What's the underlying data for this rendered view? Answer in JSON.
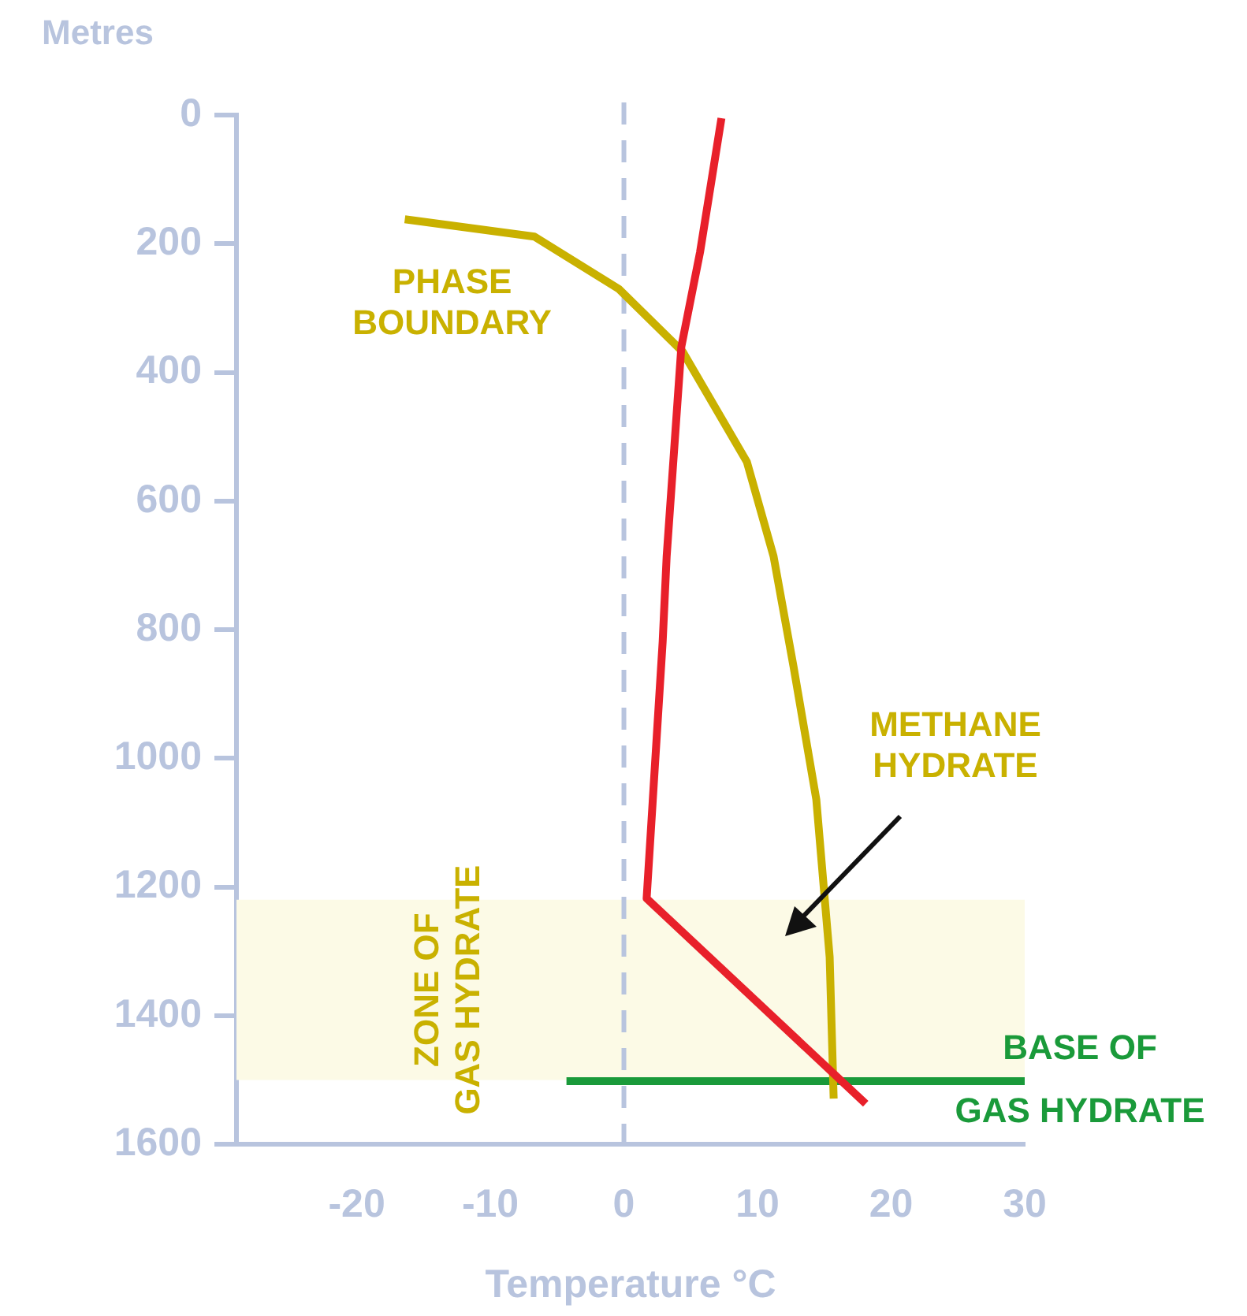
{
  "chart_data": {
    "type": "line",
    "xlabel": "Temperature °C",
    "ylabel": "Metres",
    "xlim": [
      -29,
      30
    ],
    "xticks": [
      -20,
      -10,
      0,
      10,
      20,
      30
    ],
    "ylim": [
      1600,
      0
    ],
    "yticks": [
      0,
      200,
      400,
      600,
      800,
      1000,
      1200,
      1400,
      1600
    ],
    "grid": false,
    "legend": false,
    "marker": "none",
    "series": [
      {
        "color": "#e8202a",
        "x": [
          7.3,
          5.7,
          4.3,
          3.2,
          2.9,
          1.7,
          18.1
        ],
        "values": [
          5,
          213,
          360,
          686,
          819,
          1218,
          1537
        ]
      },
      {
        "name": "PHASE BOUNDARY",
        "color": "#c9b100",
        "x": [
          -16.4,
          -6.7,
          -0.4,
          4.4,
          9.2,
          11.2,
          12.7,
          14.4,
          15.4,
          15.7
        ],
        "values": [
          162,
          189,
          270,
          368,
          539,
          686,
          858,
          1064,
          1309,
          1529
        ]
      },
      {
        "name": "BASE OF GAS HYDRATE",
        "color": "#1a9a3a",
        "x": [
          -4.3,
          30
        ],
        "values": [
          1502,
          1502
        ]
      }
    ],
    "ref_lines": [
      {
        "axis": "x",
        "value": 0,
        "color": "#b8c4de",
        "line_style": "dashed"
      }
    ],
    "bands": [
      {
        "axis": "y",
        "from": 1220,
        "to": 1500,
        "label": "ZONE OF GAS HYDRATE",
        "color": "#fcfae6"
      }
    ],
    "annotations": [
      "METHANE HYDRATE"
    ]
  }
}
